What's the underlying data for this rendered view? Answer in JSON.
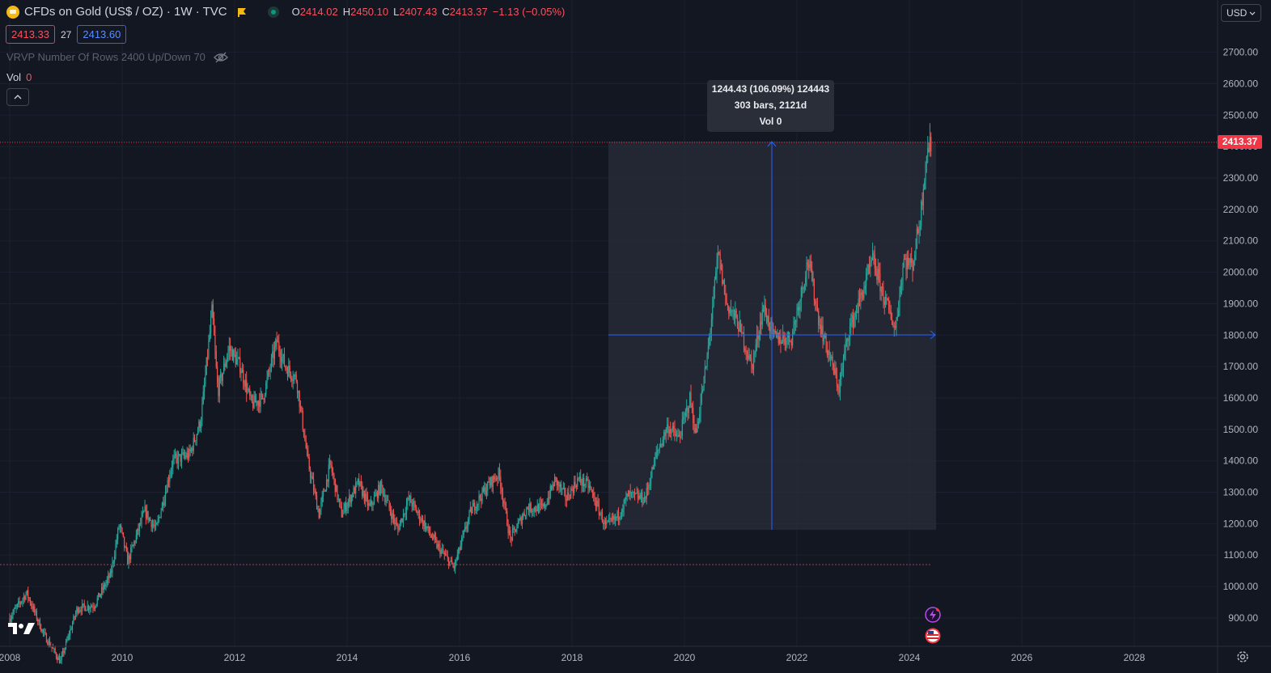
{
  "legend": {
    "title": "CFDs on Gold (US$ / OZ) · 1W · TVC",
    "open_key": "O",
    "open": "2414.02",
    "high_key": "H",
    "high": "2450.10",
    "low_key": "L",
    "low": "2407.43",
    "close_key": "C",
    "close": "2413.37",
    "change": "−1.13 (−0.05%)",
    "bid": "2413.33",
    "spread": "27",
    "ask": "2413.60"
  },
  "indicator": {
    "label": "VRVP Number Of Rows 2400 Up/Down 70"
  },
  "volume": {
    "label": "Vol",
    "value": "0"
  },
  "measure": {
    "line1": "1244.43 (106.09%) 124443",
    "line2": "303 bars, 2121d",
    "line3": "Vol 0"
  },
  "currency": "USD",
  "last_price": "2413.37",
  "colors": {
    "background": "#131722",
    "up": "#26a69a",
    "down": "#ef5350",
    "measure_line": "#2962ff",
    "last_price": "#f23645"
  },
  "chart_data": {
    "type": "candlestick",
    "x_ticks": [
      "2008",
      "2010",
      "2012",
      "2014",
      "2016",
      "2018",
      "2020",
      "2022",
      "2024",
      "2026",
      "2028"
    ],
    "y_ticks": [
      "900.00",
      "1000.00",
      "1100.00",
      "1200.00",
      "1300.00",
      "1400.00",
      "1500.00",
      "1600.00",
      "1700.00",
      "1800.00",
      "1900.00",
      "2000.00",
      "2100.00",
      "2200.00",
      "2300.00",
      "2400.00",
      "2500.00",
      "2600.00",
      "2700.00"
    ],
    "ylim": [
      830,
      2790
    ],
    "series": [
      {
        "points": [
          [
            2008.0,
            900
          ],
          [
            2008.3,
            980
          ],
          [
            2008.6,
            850
          ],
          [
            2008.9,
            760
          ],
          [
            2009.2,
            930
          ],
          [
            2009.5,
            940
          ],
          [
            2009.8,
            1040
          ],
          [
            2009.95,
            1200
          ],
          [
            2010.1,
            1080
          ],
          [
            2010.4,
            1240
          ],
          [
            2010.6,
            1180
          ],
          [
            2010.9,
            1400
          ],
          [
            2011.2,
            1420
          ],
          [
            2011.4,
            1530
          ],
          [
            2011.6,
            1880
          ],
          [
            2011.7,
            1620
          ],
          [
            2011.9,
            1760
          ],
          [
            2012.1,
            1700
          ],
          [
            2012.3,
            1580
          ],
          [
            2012.5,
            1600
          ],
          [
            2012.75,
            1780
          ],
          [
            2012.9,
            1700
          ],
          [
            2013.1,
            1660
          ],
          [
            2013.3,
            1400
          ],
          [
            2013.5,
            1230
          ],
          [
            2013.7,
            1390
          ],
          [
            2013.9,
            1230
          ],
          [
            2014.2,
            1330
          ],
          [
            2014.4,
            1250
          ],
          [
            2014.6,
            1320
          ],
          [
            2014.9,
            1180
          ],
          [
            2015.1,
            1280
          ],
          [
            2015.4,
            1190
          ],
          [
            2015.6,
            1130
          ],
          [
            2015.9,
            1060
          ],
          [
            2016.2,
            1240
          ],
          [
            2016.5,
            1320
          ],
          [
            2016.7,
            1360
          ],
          [
            2016.9,
            1150
          ],
          [
            2017.2,
            1250
          ],
          [
            2017.5,
            1250
          ],
          [
            2017.7,
            1340
          ],
          [
            2017.9,
            1280
          ],
          [
            2018.1,
            1340
          ],
          [
            2018.3,
            1320
          ],
          [
            2018.6,
            1190
          ],
          [
            2018.8,
            1220
          ],
          [
            2019.0,
            1290
          ],
          [
            2019.3,
            1280
          ],
          [
            2019.5,
            1420
          ],
          [
            2019.7,
            1510
          ],
          [
            2019.9,
            1470
          ],
          [
            2020.1,
            1600
          ],
          [
            2020.2,
            1480
          ],
          [
            2020.4,
            1720
          ],
          [
            2020.6,
            2060
          ],
          [
            2020.75,
            1900
          ],
          [
            2020.95,
            1840
          ],
          [
            2021.2,
            1700
          ],
          [
            2021.4,
            1890
          ],
          [
            2021.6,
            1790
          ],
          [
            2021.9,
            1790
          ],
          [
            2022.2,
            2040
          ],
          [
            2022.4,
            1840
          ],
          [
            2022.6,
            1720
          ],
          [
            2022.75,
            1630
          ],
          [
            2022.9,
            1800
          ],
          [
            2023.1,
            1900
          ],
          [
            2023.35,
            2040
          ],
          [
            2023.55,
            1920
          ],
          [
            2023.75,
            1820
          ],
          [
            2023.9,
            2040
          ],
          [
            2024.05,
            2020
          ],
          [
            2024.2,
            2180
          ],
          [
            2024.3,
            2380
          ],
          [
            2024.4,
            2413
          ]
        ]
      }
    ]
  }
}
